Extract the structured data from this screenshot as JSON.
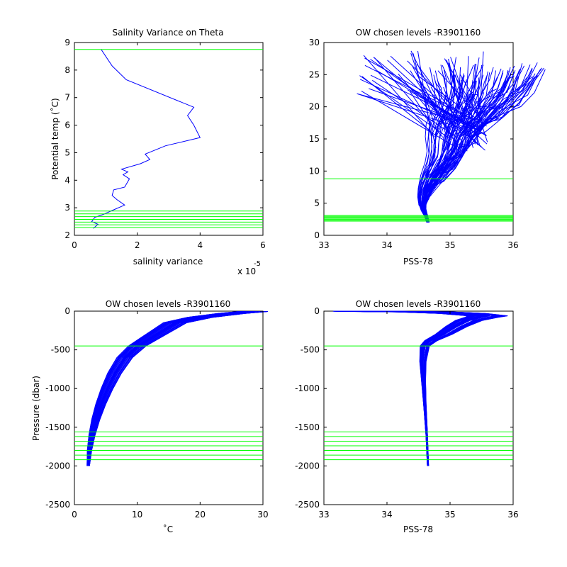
{
  "figure": {
    "background": "#ffffff",
    "profile_color": "#0000ff",
    "level_color": "#00ff00"
  },
  "chart_data": [
    {
      "type": "line",
      "title": "Salinity Variance on Theta",
      "xlabel": "salinity variance",
      "x_multiplier": "x 10",
      "x_exponent": "-5",
      "ylabel": "Potential temp (˚C)",
      "xlim": [
        0,
        6
      ],
      "ylim": [
        2,
        9
      ],
      "xticks": [
        "0",
        "2",
        "4",
        "6"
      ],
      "yticks": [
        "2",
        "3",
        "4",
        "5",
        "6",
        "7",
        "8",
        "9"
      ],
      "series": [
        {
          "x": [
            0.6,
            0.75,
            0.55,
            0.65,
            0.9,
            1.2,
            1.6,
            1.35,
            1.2,
            1.25,
            1.6,
            1.65,
            1.75,
            1.55,
            1.7,
            1.5,
            2.1,
            2.4,
            2.25,
            2.9,
            4.0,
            3.8,
            3.6,
            3.8,
            1.65,
            1.2,
            0.85
          ],
          "y": [
            2.25,
            2.4,
            2.5,
            2.65,
            2.75,
            2.9,
            3.1,
            3.3,
            3.45,
            3.65,
            3.75,
            3.85,
            4.05,
            4.2,
            4.3,
            4.4,
            4.6,
            4.75,
            4.95,
            5.25,
            5.55,
            6.0,
            6.35,
            6.65,
            7.65,
            8.15,
            8.75
          ]
        }
      ],
      "horizontal_levels": [
        2.28,
        2.38,
        2.48,
        2.58,
        2.68,
        2.78,
        2.88,
        8.75
      ]
    },
    {
      "type": "line",
      "title": "OW chosen levels -R3901160",
      "xlabel": "PSS-78",
      "ylabel": "",
      "xlim": [
        33,
        36
      ],
      "ylim": [
        0,
        30
      ],
      "xticks": [
        "33",
        "34",
        "35",
        "36"
      ],
      "yticks": [
        "0",
        "5",
        "10",
        "15",
        "20",
        "25",
        "30"
      ],
      "series": [
        {
          "x": [
            34.65,
            34.62,
            34.58,
            34.56,
            34.58,
            34.63,
            34.72,
            34.85,
            34.95,
            35.0,
            35.1,
            35.3,
            35.45,
            35.55,
            35.6
          ],
          "y": [
            2.0,
            3.0,
            4.0,
            5.0,
            6.0,
            7.5,
            9.0,
            11.0,
            13.0,
            15.0,
            17.0,
            19.0,
            21.0,
            23.0,
            25.5
          ]
        }
      ],
      "fan_region": {
        "x": [
          33.5,
          35.65
        ],
        "y": [
          13,
          28.8
        ]
      },
      "horizontal_levels": [
        2.2,
        2.35,
        2.5,
        2.65,
        2.8,
        2.95,
        3.1,
        8.8
      ]
    },
    {
      "type": "line",
      "title": "OW chosen levels -R3901160",
      "xlabel": "˚C",
      "ylabel": "Pressure (dbar)",
      "xlim": [
        0,
        30
      ],
      "ylim": [
        -2500,
        0
      ],
      "xticks": [
        "0",
        "10",
        "20",
        "30"
      ],
      "yticks": [
        "-2500",
        "-2000",
        "-1500",
        "-1000",
        "-500",
        "0"
      ],
      "series": [
        {
          "x": [
            2.2,
            2.4,
            2.8,
            3.4,
            4.2,
            5.2,
            6.4,
            8.0,
            10.0,
            12.0,
            14.0,
            16.0,
            20.0,
            25.0,
            28.5
          ],
          "y": [
            -2000,
            -1800,
            -1600,
            -1400,
            -1200,
            -1000,
            -800,
            -600,
            -450,
            -350,
            -250,
            -150,
            -80,
            -30,
            -5
          ]
        }
      ],
      "horizontal_levels": [
        -450,
        -1560,
        -1620,
        -1680,
        -1740,
        -1800,
        -1860,
        -1920
      ]
    },
    {
      "type": "line",
      "title": "OW chosen levels -R3901160",
      "xlabel": "PSS-78",
      "ylabel": "",
      "xlim": [
        33,
        36
      ],
      "ylim": [
        -2500,
        0
      ],
      "xticks": [
        "33",
        "34",
        "35",
        "36"
      ],
      "yticks": [
        "-2500",
        "-2000",
        "-1500",
        "-1000",
        "-500",
        "0"
      ],
      "series": [
        {
          "x": [
            34.65,
            34.63,
            34.6,
            34.58,
            34.57,
            34.6,
            34.7,
            34.9,
            35.1,
            35.3,
            35.5,
            35.6,
            35.2,
            34.6,
            33.65
          ],
          "y": [
            -2000,
            -1600,
            -1200,
            -900,
            -650,
            -450,
            -380,
            -300,
            -200,
            -120,
            -80,
            -60,
            -30,
            -10,
            -2
          ]
        }
      ],
      "horizontal_levels": [
        -450,
        -1560,
        -1620,
        -1680,
        -1740,
        -1800,
        -1860,
        -1920
      ]
    }
  ]
}
